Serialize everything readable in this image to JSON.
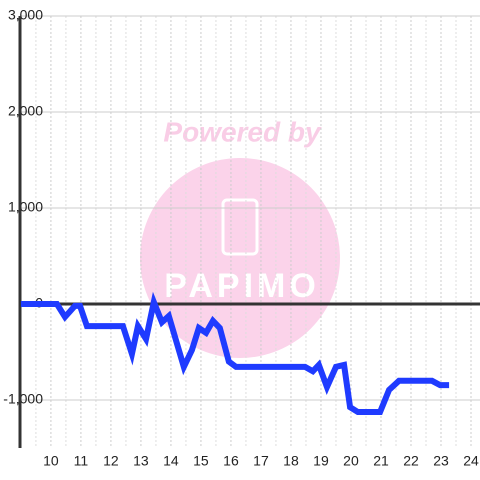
{
  "chart_data": {
    "type": "line",
    "x": [
      9.0,
      10.2,
      10.47,
      10.8,
      10.97,
      11.2,
      12.4,
      12.7,
      12.9,
      13.17,
      13.43,
      13.7,
      13.93,
      14.43,
      14.7,
      14.93,
      15.17,
      15.4,
      15.63,
      15.93,
      16.17,
      18.47,
      18.73,
      18.93,
      19.2,
      19.5,
      19.77,
      19.97,
      20.23,
      20.97,
      21.27,
      21.6,
      22.7,
      22.97,
      23.27
    ],
    "values": [
      0,
      0,
      -135,
      -20,
      -20,
      -230,
      -230,
      -520,
      -230,
      -365,
      20,
      -190,
      -125,
      -655,
      -480,
      -250,
      -300,
      -175,
      -250,
      -600,
      -655,
      -655,
      -700,
      -635,
      -865,
      -655,
      -635,
      -1075,
      -1125,
      -1125,
      -895,
      -800,
      -800,
      -845,
      -845
    ],
    "color": "#1f3bff",
    "xlim": [
      8.97,
      24.3
    ],
    "xticks": [
      10,
      11,
      12,
      13,
      14,
      15,
      16,
      17,
      18,
      19,
      20,
      21,
      22,
      23,
      24
    ],
    "ylim": [
      -1500,
      3000
    ],
    "yticks": [
      {
        "value": -1000,
        "label": "-1,000"
      },
      0,
      {
        "value": 1000,
        "label": "1,000"
      },
      {
        "value": 2000,
        "label": "2,000"
      },
      {
        "value": 3000,
        "label": "3,000"
      }
    ],
    "grid": true
  },
  "watermark": {
    "text": "Powered by",
    "logo": "PAPIMO"
  }
}
